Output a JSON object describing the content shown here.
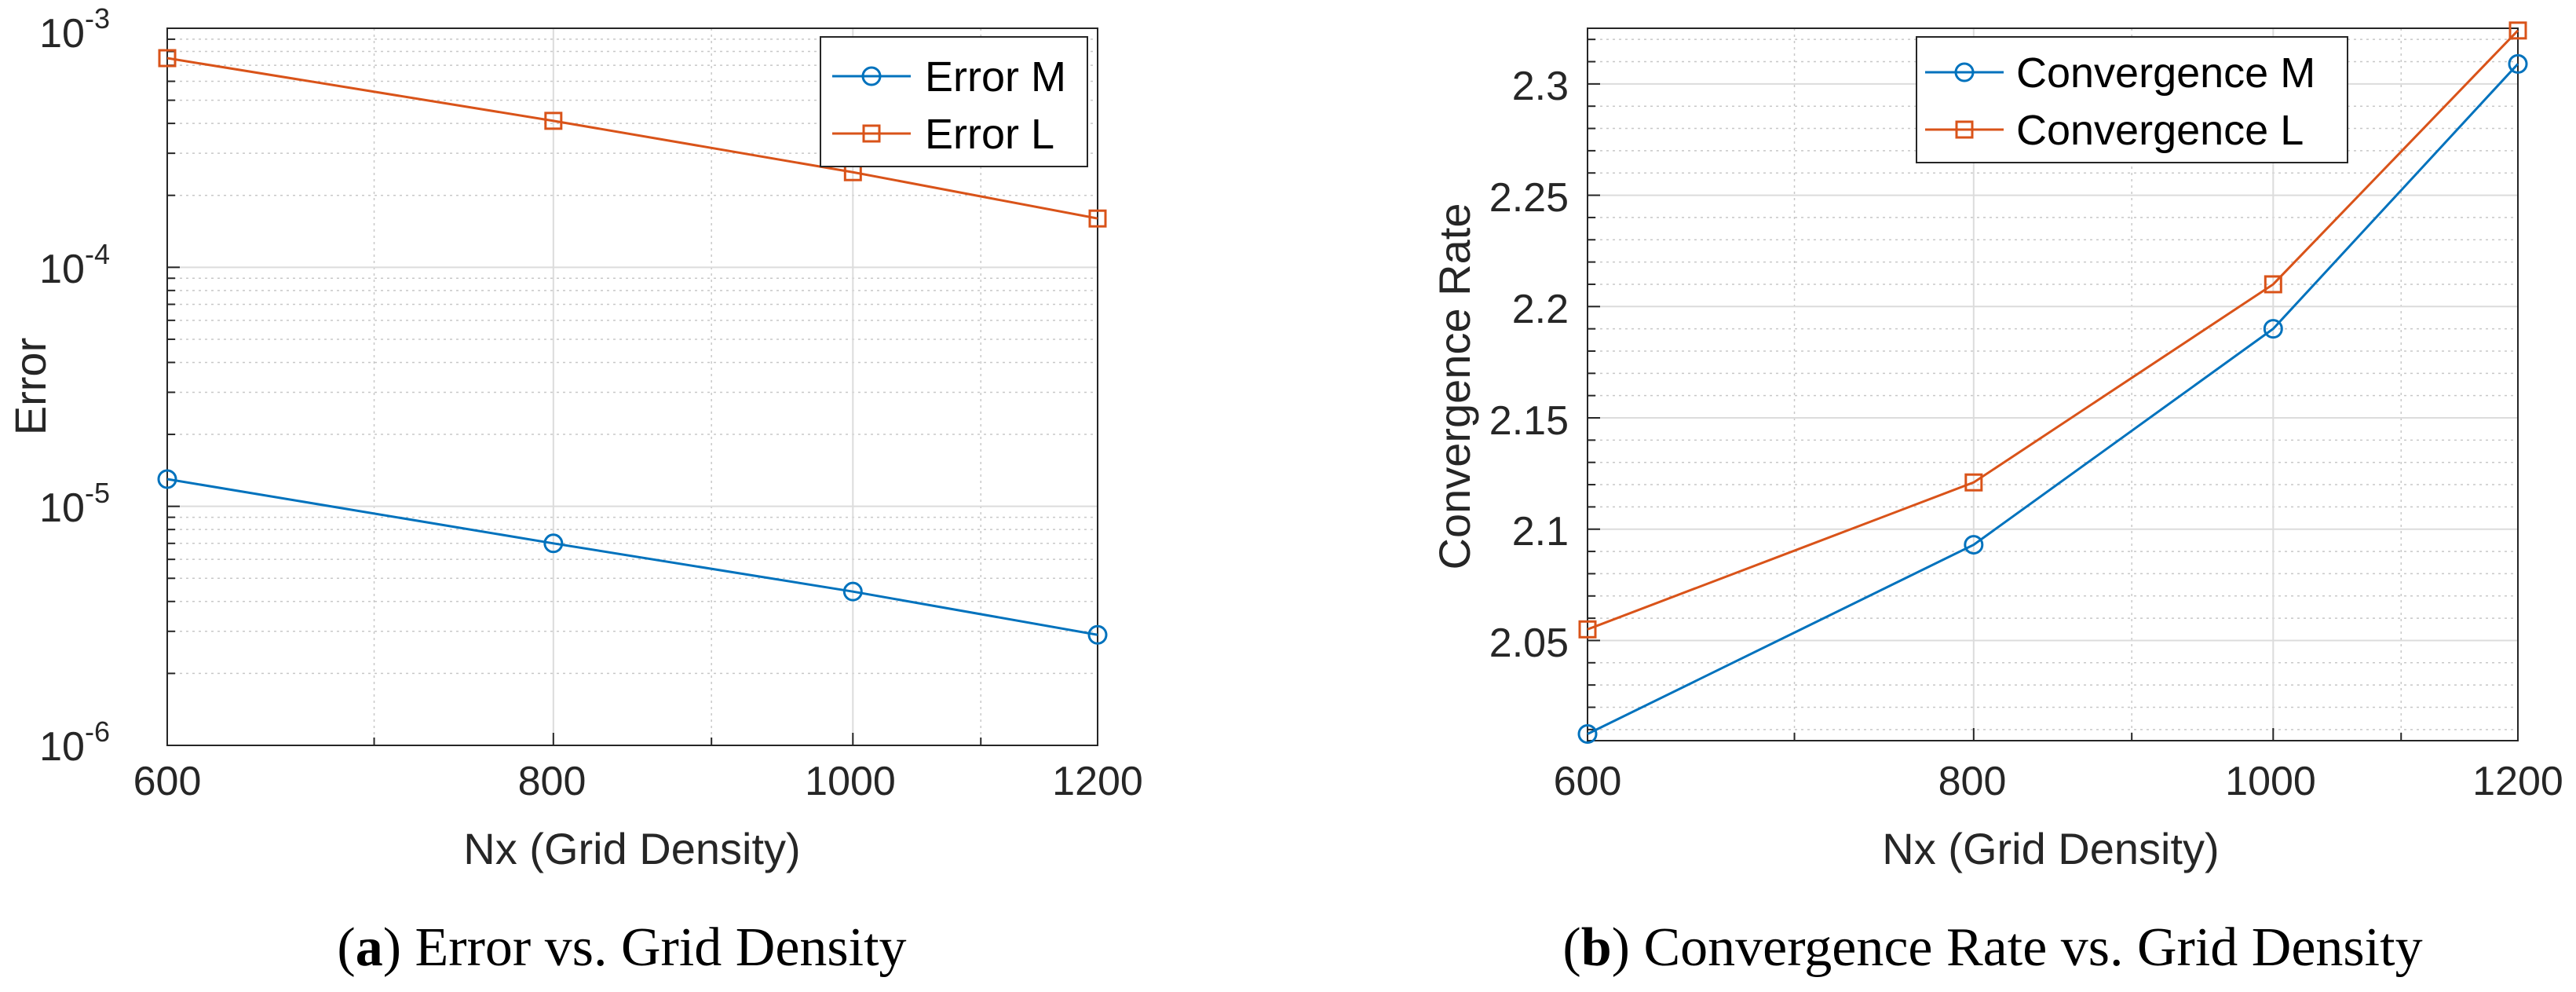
{
  "chart_data": [
    {
      "type": "line",
      "yscale": "log",
      "xlabel": "Nx (Grid Density)",
      "ylabel": "Error",
      "xlim": [
        600,
        1200
      ],
      "ylim": [
        1e-06,
        0.001
      ],
      "x": [
        600,
        800,
        1000,
        1200
      ],
      "xticks": [
        "600",
        "800",
        "1000",
        "1200"
      ],
      "yticks": [
        {
          "value": 1e-06,
          "base": "10",
          "exp": "-6"
        },
        {
          "value": 1e-05,
          "base": "10",
          "exp": "-5"
        },
        {
          "value": 0.0001,
          "base": "10",
          "exp": "-4"
        },
        {
          "value": 0.001,
          "base": "10",
          "exp": "-3"
        }
      ],
      "grid": true,
      "legend_position": "top-right",
      "series": [
        {
          "name": "Error M",
          "marker": "circle",
          "color": "#0072BD",
          "values": [
            1.3e-05,
            7e-06,
            4.4e-06,
            2.9e-06
          ]
        },
        {
          "name": "Error L",
          "marker": "square",
          "color": "#D95319",
          "values": [
            0.00075,
            0.00041,
            0.00025,
            0.00016
          ]
        }
      ],
      "caption": {
        "letter": "a",
        "text": " Error vs. Grid Density"
      }
    },
    {
      "type": "line",
      "yscale": "linear",
      "xlabel": "Nx (Grid Density)",
      "ylabel": "Convergence Rate",
      "xlim": [
        600,
        1200
      ],
      "ylim": [
        2.005,
        2.325
      ],
      "x": [
        600,
        800,
        1000,
        1200
      ],
      "xticks": [
        "600",
        "800",
        "1000",
        "1200"
      ],
      "yticks": [
        {
          "value": 2.05,
          "label": "2.05"
        },
        {
          "value": 2.1,
          "label": "2.1"
        },
        {
          "value": 2.15,
          "label": "2.15"
        },
        {
          "value": 2.2,
          "label": "2.2"
        },
        {
          "value": 2.25,
          "label": "2.25"
        },
        {
          "value": 2.3,
          "label": "2.3"
        }
      ],
      "grid": true,
      "legend_position": "top-left",
      "series": [
        {
          "name": "Convergence M",
          "marker": "circle",
          "color": "#0072BD",
          "values": [
            2.008,
            2.093,
            2.19,
            2.309
          ]
        },
        {
          "name": "Convergence L",
          "marker": "square",
          "color": "#D95319",
          "values": [
            2.055,
            2.121,
            2.21,
            2.324
          ]
        }
      ],
      "caption": {
        "letter": "b",
        "text": " Convergence Rate vs. Grid Density"
      }
    }
  ]
}
